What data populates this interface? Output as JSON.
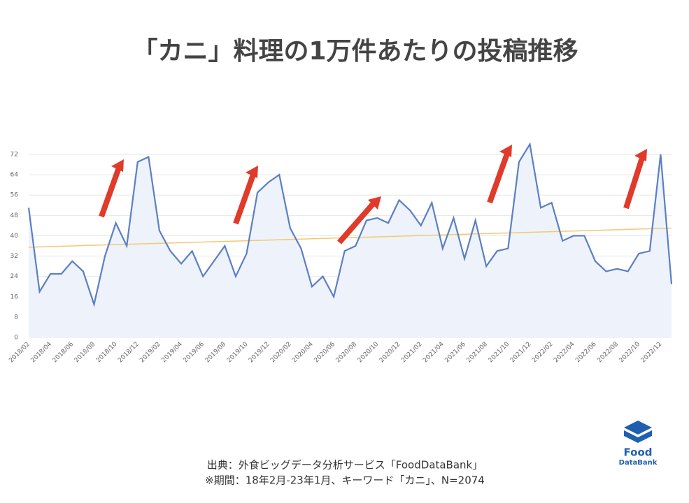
{
  "chart_data": {
    "type": "line",
    "title": "「カニ」料理の1万件あたりの投稿推移",
    "source": [
      "出典：外食ビッグデータ分析サービス「FoodDataBank」",
      "※期間：18年2月-23年1月、キーワード「カニ」、N=2074"
    ],
    "logo": [
      "Food",
      "DataBank"
    ],
    "categories": [
      "2018/02",
      null,
      "2018/04",
      null,
      "2018/06",
      null,
      "2018/08",
      null,
      "2018/10",
      null,
      "2018/12",
      null,
      "2019/02",
      null,
      "2019/04",
      null,
      "2019/06",
      null,
      "2019/08",
      null,
      "2019/10",
      null,
      "2019/12",
      null,
      "2020/02",
      null,
      "2020/04",
      null,
      "2020/06",
      null,
      "2020/08",
      null,
      "2020/10",
      null,
      "2020/12",
      null,
      "2021/02",
      null,
      "2021/04",
      null,
      "2021/06",
      null,
      "2021/08",
      null,
      "2021/10",
      null,
      "2021/12",
      null,
      "2022/02",
      null,
      "2022/04",
      null,
      "2022/06",
      null,
      "2022/08",
      null,
      "2022/10",
      null,
      "2022/12",
      null
    ],
    "series": [
      {
        "color": "#5b7fc4",
        "values": [
          51,
          18,
          25,
          25,
          30,
          26,
          13,
          32,
          45,
          36,
          69,
          71,
          42,
          34,
          29,
          34,
          24,
          30,
          36,
          24,
          33,
          57,
          61,
          64,
          43,
          35,
          20,
          24,
          16,
          34,
          36,
          46,
          47,
          45,
          54,
          50,
          44,
          53,
          35,
          47,
          31,
          46,
          28,
          34,
          35,
          69,
          76,
          51,
          53,
          38,
          40,
          40,
          30,
          26,
          27,
          26,
          33,
          34,
          72,
          21
        ]
      }
    ],
    "trendline": {
      "color": "#f3c971",
      "values": [
        35.5,
        43
      ]
    },
    "ylim": [
      0,
      72
    ],
    "yticks": [
      0,
      8,
      16,
      24,
      32,
      40,
      48,
      56,
      64,
      72
    ],
    "grid": true
  }
}
